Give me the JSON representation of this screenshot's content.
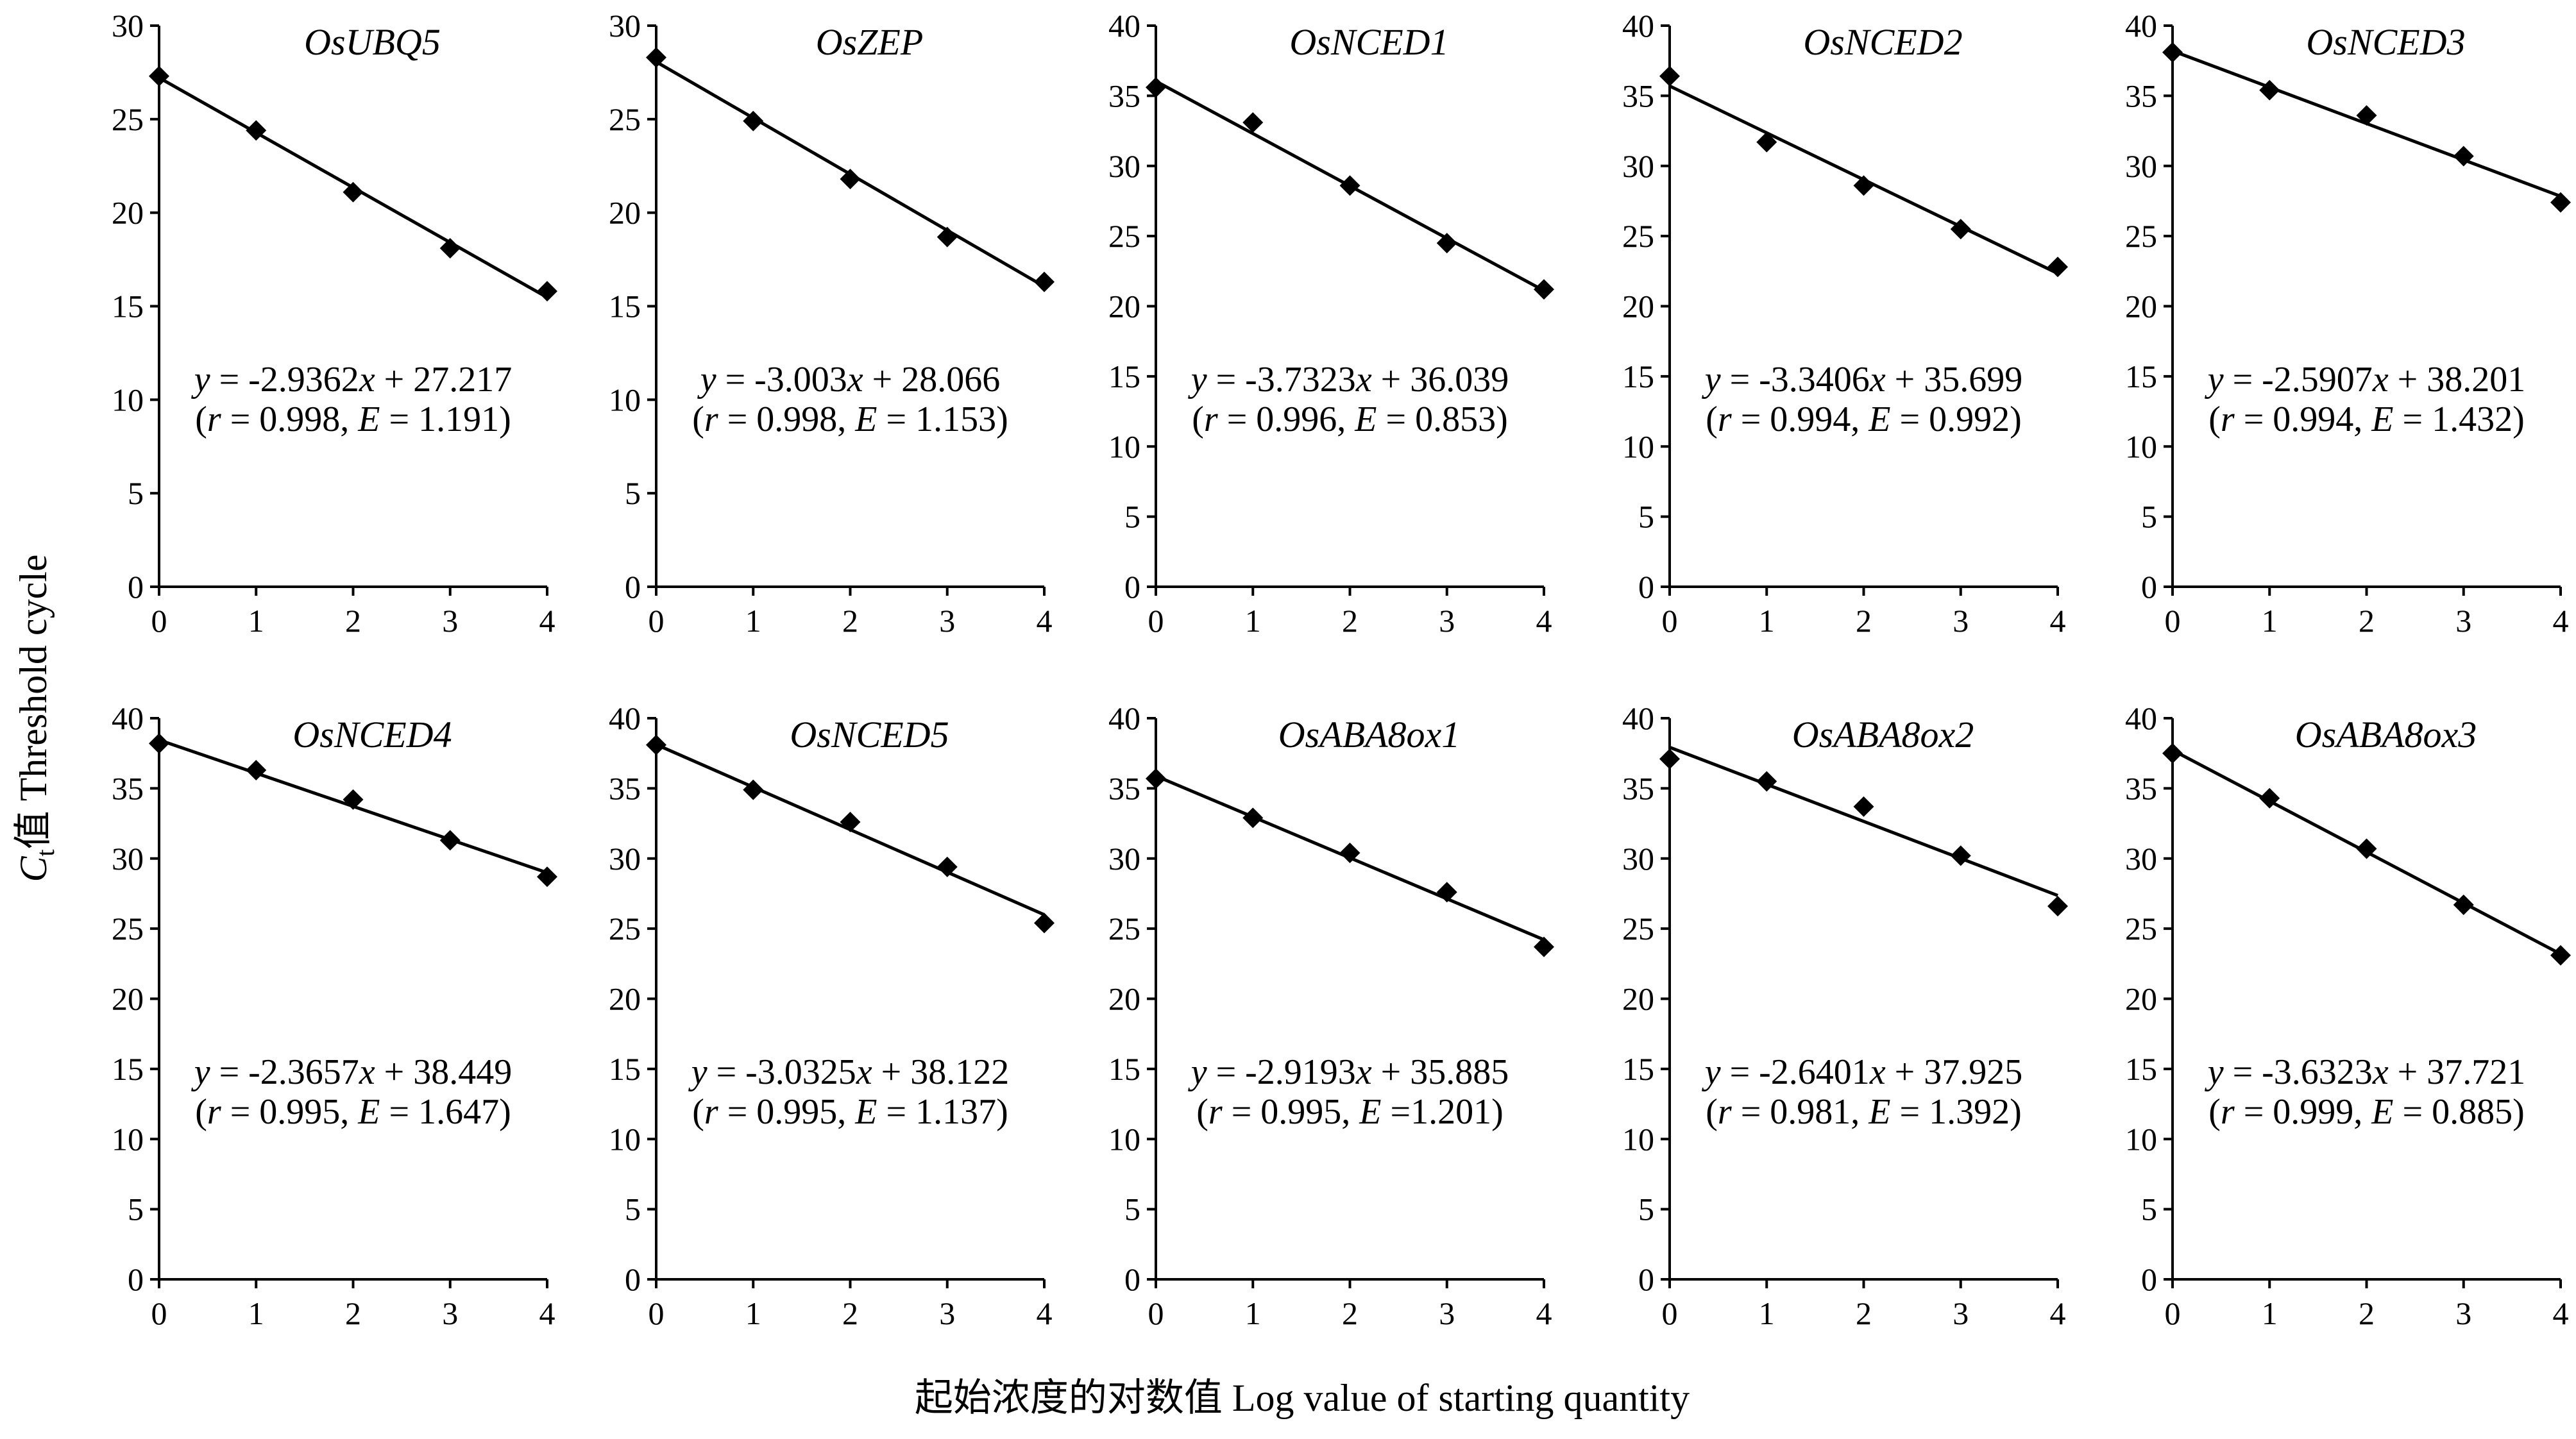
{
  "figure": {
    "ylabel_symbol": "C",
    "ylabel_subscript": "t",
    "ylabel_rest": "值 Threshold cycle",
    "xlabel": "起始浓度的对数值 Log value of starting quantity"
  },
  "chart_data": [
    {
      "type": "scatter",
      "title": "OsUBQ5",
      "x": [
        0,
        1,
        2,
        3,
        4
      ],
      "y": [
        27.3,
        24.4,
        21.1,
        18.1,
        15.8
      ],
      "xlim": [
        0,
        4
      ],
      "ylim": [
        0,
        30
      ],
      "yticks": [
        0,
        5,
        10,
        15,
        20,
        25,
        30
      ],
      "xticks": [
        0,
        1,
        2,
        3,
        4
      ],
      "fit": {
        "slope": -2.9362,
        "intercept": 27.217
      },
      "eq_slope": "-2.9362",
      "eq_intercept": "27.217",
      "r": "0.998",
      "e": "1.191",
      "eq_gap": true
    },
    {
      "type": "scatter",
      "title": "OsZEP",
      "x": [
        0,
        1,
        2,
        3,
        4
      ],
      "y": [
        28.3,
        24.9,
        21.8,
        18.7,
        16.3
      ],
      "xlim": [
        0,
        4
      ],
      "ylim": [
        0,
        30
      ],
      "yticks": [
        0,
        5,
        10,
        15,
        20,
        25,
        30
      ],
      "xticks": [
        0,
        1,
        2,
        3,
        4
      ],
      "fit": {
        "slope": -3.003,
        "intercept": 28.066
      },
      "eq_slope": "-3.003",
      "eq_intercept": "28.066",
      "r": "0.998",
      "e": "1.153",
      "eq_gap": true
    },
    {
      "type": "scatter",
      "title": "OsNCED1",
      "x": [
        0,
        1,
        2,
        3,
        4
      ],
      "y": [
        35.6,
        33.1,
        28.6,
        24.5,
        21.2
      ],
      "xlim": [
        0,
        4
      ],
      "ylim": [
        0,
        40
      ],
      "yticks": [
        0,
        5,
        10,
        15,
        20,
        25,
        30,
        35,
        40
      ],
      "xticks": [
        0,
        1,
        2,
        3,
        4
      ],
      "fit": {
        "slope": -3.7323,
        "intercept": 36.039
      },
      "eq_slope": "-3.7323",
      "eq_intercept": "36.039",
      "r": "0.996",
      "e": "0.853",
      "eq_gap": true
    },
    {
      "type": "scatter",
      "title": "OsNCED2",
      "x": [
        0,
        1,
        2,
        3,
        4
      ],
      "y": [
        36.4,
        31.7,
        28.6,
        25.5,
        22.8
      ],
      "xlim": [
        0,
        4
      ],
      "ylim": [
        0,
        40
      ],
      "yticks": [
        0,
        5,
        10,
        15,
        20,
        25,
        30,
        35,
        40
      ],
      "xticks": [
        0,
        1,
        2,
        3,
        4
      ],
      "fit": {
        "slope": -3.3406,
        "intercept": 35.699
      },
      "eq_slope": "-3.3406",
      "eq_intercept": "35.699",
      "r": "0.994",
      "e": "0.992",
      "eq_gap": true
    },
    {
      "type": "scatter",
      "title": "OsNCED3",
      "x": [
        0,
        1,
        2,
        3,
        4
      ],
      "y": [
        38.1,
        35.4,
        33.6,
        30.7,
        27.4
      ],
      "xlim": [
        0,
        4
      ],
      "ylim": [
        0,
        40
      ],
      "yticks": [
        0,
        5,
        10,
        15,
        20,
        25,
        30,
        35,
        40
      ],
      "xticks": [
        0,
        1,
        2,
        3,
        4
      ],
      "fit": {
        "slope": -2.5907,
        "intercept": 38.201
      },
      "eq_slope": "-2.5907",
      "eq_intercept": "38.201",
      "r": "0.994",
      "e": "1.432",
      "eq_gap": true
    },
    {
      "type": "scatter",
      "title": "OsNCED4",
      "x": [
        0,
        1,
        2,
        3,
        4
      ],
      "y": [
        38.2,
        36.3,
        34.2,
        31.3,
        28.7
      ],
      "xlim": [
        0,
        4
      ],
      "ylim": [
        0,
        40
      ],
      "yticks": [
        0,
        5,
        10,
        15,
        20,
        25,
        30,
        35,
        40
      ],
      "xticks": [
        0,
        1,
        2,
        3,
        4
      ],
      "fit": {
        "slope": -2.3657,
        "intercept": 38.449
      },
      "eq_slope": "-2.3657",
      "eq_intercept": "38.449",
      "r": "0.995",
      "e": "1.647",
      "eq_gap": true
    },
    {
      "type": "scatter",
      "title": "OsNCED5",
      "x": [
        0,
        1,
        2,
        3,
        4
      ],
      "y": [
        38.1,
        34.9,
        32.6,
        29.4,
        25.4
      ],
      "xlim": [
        0,
        4
      ],
      "ylim": [
        0,
        40
      ],
      "yticks": [
        0,
        5,
        10,
        15,
        20,
        25,
        30,
        35,
        40
      ],
      "xticks": [
        0,
        1,
        2,
        3,
        4
      ],
      "fit": {
        "slope": -3.0325,
        "intercept": 38.122
      },
      "eq_slope": "-3.0325",
      "eq_intercept": "38.122",
      "r": "0.995",
      "e": "1.137",
      "eq_gap": true
    },
    {
      "type": "scatter",
      "title": "OsABA8ox1",
      "x": [
        0,
        1,
        2,
        3,
        4
      ],
      "y": [
        35.7,
        32.9,
        30.4,
        27.6,
        23.7
      ],
      "xlim": [
        0,
        4
      ],
      "ylim": [
        0,
        40
      ],
      "yticks": [
        0,
        5,
        10,
        15,
        20,
        25,
        30,
        35,
        40
      ],
      "xticks": [
        0,
        1,
        2,
        3,
        4
      ],
      "fit": {
        "slope": -2.9193,
        "intercept": 35.885
      },
      "eq_slope": "-2.9193",
      "eq_intercept": "35.885",
      "r": "0.995",
      "e": "1.201",
      "eq_gap": false
    },
    {
      "type": "scatter",
      "title": "OsABA8ox2",
      "x": [
        0,
        1,
        2,
        3,
        4
      ],
      "y": [
        37.1,
        35.5,
        33.7,
        30.2,
        26.6
      ],
      "xlim": [
        0,
        4
      ],
      "ylim": [
        0,
        40
      ],
      "yticks": [
        0,
        5,
        10,
        15,
        20,
        25,
        30,
        35,
        40
      ],
      "xticks": [
        0,
        1,
        2,
        3,
        4
      ],
      "fit": {
        "slope": -2.6401,
        "intercept": 37.925
      },
      "eq_slope": "-2.6401",
      "eq_intercept": "37.925",
      "r": "0.981",
      "e": "1.392",
      "eq_gap": true
    },
    {
      "type": "scatter",
      "title": "OsABA8ox3",
      "x": [
        0,
        1,
        2,
        3,
        4
      ],
      "y": [
        37.5,
        34.3,
        30.7,
        26.7,
        23.1
      ],
      "xlim": [
        0,
        4
      ],
      "ylim": [
        0,
        40
      ],
      "yticks": [
        0,
        5,
        10,
        15,
        20,
        25,
        30,
        35,
        40
      ],
      "xticks": [
        0,
        1,
        2,
        3,
        4
      ],
      "fit": {
        "slope": -3.6323,
        "intercept": 37.721
      },
      "eq_slope": "-3.6323",
      "eq_intercept": "37.721",
      "r": "0.999",
      "e": "0.885",
      "eq_gap": true
    }
  ]
}
